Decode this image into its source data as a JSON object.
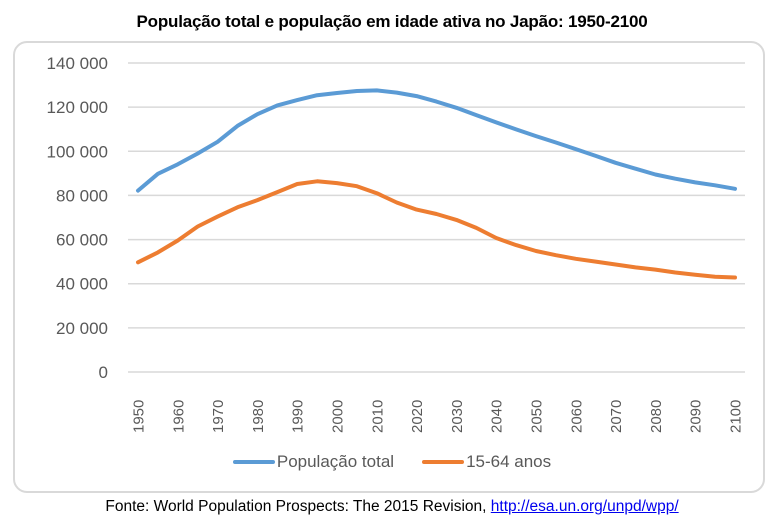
{
  "chart_data": {
    "type": "line",
    "title": "População total e população em idade ativa no Japão: 1950-2100",
    "xlabel": "",
    "ylabel": "",
    "x": [
      1950,
      1955,
      1960,
      1965,
      1970,
      1975,
      1980,
      1985,
      1990,
      1995,
      2000,
      2005,
      2010,
      2015,
      2020,
      2025,
      2030,
      2035,
      2040,
      2045,
      2050,
      2055,
      2060,
      2065,
      2070,
      2075,
      2080,
      2085,
      2090,
      2095,
      2100
    ],
    "x_tick_labels": [
      "1950",
      "1960",
      "1970",
      "1980",
      "1990",
      "2000",
      "2010",
      "2020",
      "2030",
      "2040",
      "2050",
      "2060",
      "2070",
      "2080",
      "2090",
      "2100"
    ],
    "y_tick_labels": [
      "0",
      "20 000",
      "40 000",
      "60 000",
      "80 000",
      "100 000",
      "120 000",
      "140 000"
    ],
    "y_ticks": [
      0,
      20000,
      40000,
      60000,
      80000,
      100000,
      120000,
      140000
    ],
    "xlim": [
      1950,
      2100
    ],
    "ylim": [
      0,
      140000
    ],
    "grid": "horizontal",
    "legend_position": "bottom",
    "series": [
      {
        "name": "População total",
        "color": "#5b9bd5",
        "values": [
          82200,
          89800,
          94100,
          99000,
          104300,
          111500,
          116800,
          120800,
          123200,
          125400,
          126400,
          127300,
          127600,
          126600,
          125000,
          122500,
          119700,
          116400,
          113100,
          109900,
          106900,
          104000,
          101000,
          97900,
          94800,
          92100,
          89500,
          87600,
          85900,
          84600,
          83000
        ]
      },
      {
        "name": "15-64 anos",
        "color": "#ed7d31",
        "values": [
          49700,
          54200,
          59600,
          65900,
          70400,
          74600,
          77900,
          81500,
          85200,
          86400,
          85600,
          84200,
          81000,
          76800,
          73600,
          71600,
          68900,
          65300,
          60700,
          57500,
          54800,
          52900,
          51300,
          50000,
          48700,
          47400,
          46400,
          45100,
          44100,
          43200,
          42800
        ]
      }
    ]
  },
  "source": {
    "prefix": "Fonte: World Population Prospects: The 2015 Revision, ",
    "link_text": "http://esa.un.org/unpd/wpp/"
  }
}
